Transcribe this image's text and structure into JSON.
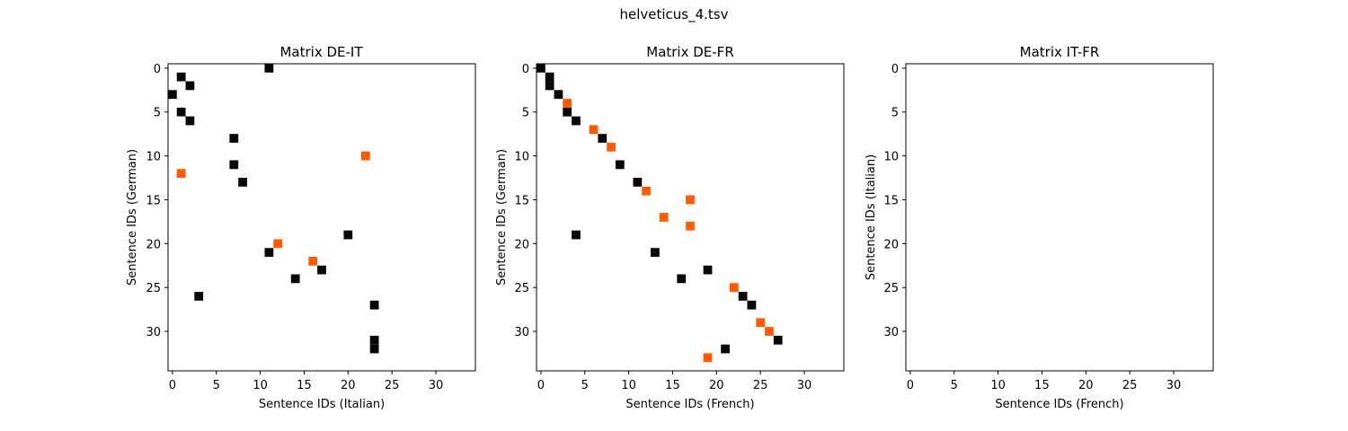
{
  "figure_title": "helveticus_4.tsv",
  "colors": {
    "black": "#0b0608",
    "orange": "#ff5a00"
  },
  "chart_data": [
    {
      "type": "heatmap",
      "title": "Matrix DE-IT",
      "xlabel": "Sentence IDs (Italian)",
      "ylabel": "Sentence IDs (German)",
      "xlim": [
        -0.5,
        34.5
      ],
      "ylim": [
        34.5,
        -0.5
      ],
      "xticks": [
        0,
        5,
        10,
        15,
        20,
        25,
        30
      ],
      "yticks": [
        0,
        5,
        10,
        15,
        20,
        25,
        30
      ],
      "grid": false,
      "cells": [
        {
          "x": 11,
          "y": 0,
          "color": "black"
        },
        {
          "x": 1,
          "y": 1,
          "color": "black"
        },
        {
          "x": 2,
          "y": 2,
          "color": "black"
        },
        {
          "x": 0,
          "y": 3,
          "color": "black"
        },
        {
          "x": 1,
          "y": 5,
          "color": "black"
        },
        {
          "x": 2,
          "y": 6,
          "color": "black"
        },
        {
          "x": 7,
          "y": 8,
          "color": "black"
        },
        {
          "x": 22,
          "y": 10,
          "color": "orange"
        },
        {
          "x": 7,
          "y": 11,
          "color": "black"
        },
        {
          "x": 1,
          "y": 12,
          "color": "orange"
        },
        {
          "x": 8,
          "y": 13,
          "color": "black"
        },
        {
          "x": 20,
          "y": 19,
          "color": "black"
        },
        {
          "x": 12,
          "y": 20,
          "color": "orange"
        },
        {
          "x": 11,
          "y": 21,
          "color": "black"
        },
        {
          "x": 16,
          "y": 22,
          "color": "orange"
        },
        {
          "x": 17,
          "y": 23,
          "color": "black"
        },
        {
          "x": 14,
          "y": 24,
          "color": "black"
        },
        {
          "x": 3,
          "y": 26,
          "color": "black"
        },
        {
          "x": 23,
          "y": 27,
          "color": "black"
        },
        {
          "x": 23,
          "y": 31,
          "color": "black"
        },
        {
          "x": 23,
          "y": 32,
          "color": "black"
        }
      ]
    },
    {
      "type": "heatmap",
      "title": "Matrix DE-FR",
      "xlabel": "Sentence IDs (French)",
      "ylabel": "Sentence IDs (German)",
      "xlim": [
        -0.5,
        34.5
      ],
      "ylim": [
        34.5,
        -0.5
      ],
      "xticks": [
        0,
        5,
        10,
        15,
        20,
        25,
        30
      ],
      "yticks": [
        0,
        5,
        10,
        15,
        20,
        25,
        30
      ],
      "grid": false,
      "cells": [
        {
          "x": 0,
          "y": 0,
          "color": "black"
        },
        {
          "x": 1,
          "y": 1,
          "color": "black"
        },
        {
          "x": 1,
          "y": 2,
          "color": "black"
        },
        {
          "x": 2,
          "y": 3,
          "color": "black"
        },
        {
          "x": 3,
          "y": 4,
          "color": "orange"
        },
        {
          "x": 3,
          "y": 5,
          "color": "black"
        },
        {
          "x": 4,
          "y": 6,
          "color": "black"
        },
        {
          "x": 6,
          "y": 7,
          "color": "orange"
        },
        {
          "x": 7,
          "y": 8,
          "color": "black"
        },
        {
          "x": 8,
          "y": 9,
          "color": "orange"
        },
        {
          "x": 9,
          "y": 11,
          "color": "black"
        },
        {
          "x": 11,
          "y": 13,
          "color": "black"
        },
        {
          "x": 12,
          "y": 14,
          "color": "orange"
        },
        {
          "x": 17,
          "y": 15,
          "color": "orange"
        },
        {
          "x": 14,
          "y": 17,
          "color": "orange"
        },
        {
          "x": 17,
          "y": 18,
          "color": "orange"
        },
        {
          "x": 4,
          "y": 19,
          "color": "black"
        },
        {
          "x": 13,
          "y": 21,
          "color": "black"
        },
        {
          "x": 19,
          "y": 23,
          "color": "black"
        },
        {
          "x": 16,
          "y": 24,
          "color": "black"
        },
        {
          "x": 22,
          "y": 25,
          "color": "orange"
        },
        {
          "x": 23,
          "y": 26,
          "color": "black"
        },
        {
          "x": 24,
          "y": 27,
          "color": "black"
        },
        {
          "x": 25,
          "y": 29,
          "color": "orange"
        },
        {
          "x": 26,
          "y": 30,
          "color": "orange"
        },
        {
          "x": 27,
          "y": 31,
          "color": "black"
        },
        {
          "x": 21,
          "y": 32,
          "color": "black"
        },
        {
          "x": 19,
          "y": 33,
          "color": "orange"
        }
      ]
    },
    {
      "type": "heatmap",
      "title": "Matrix IT-FR",
      "xlabel": "Sentence IDs (French)",
      "ylabel": "Sentence IDs (Italian)",
      "xlim": [
        -0.5,
        34.5
      ],
      "ylim": [
        34.5,
        -0.5
      ],
      "xticks": [
        0,
        5,
        10,
        15,
        20,
        25,
        30
      ],
      "yticks": [
        0,
        5,
        10,
        15,
        20,
        25,
        30
      ],
      "grid": false,
      "cells": []
    }
  ]
}
